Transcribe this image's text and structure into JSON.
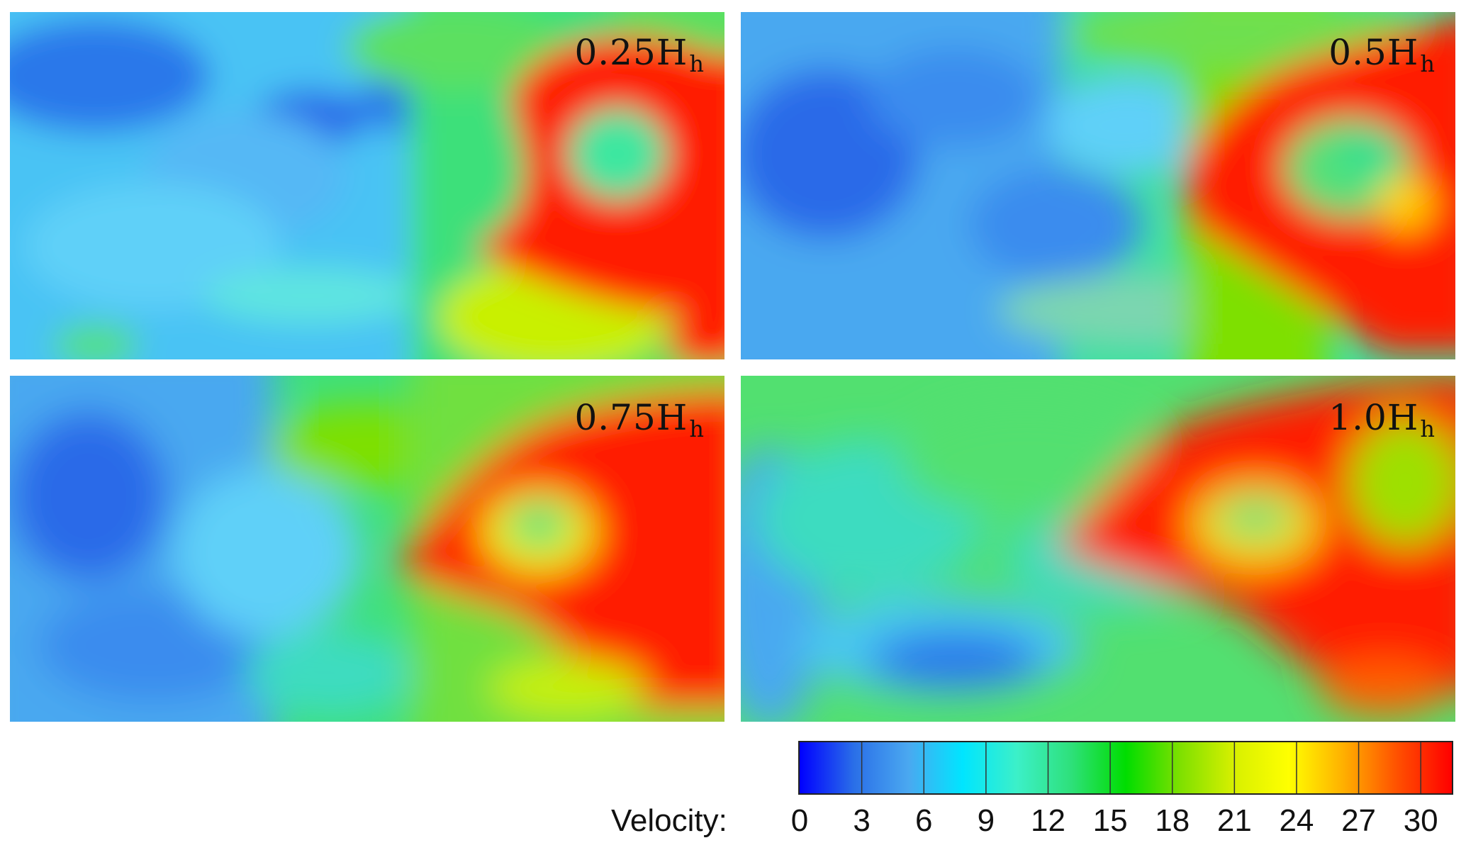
{
  "panels": [
    {
      "label": "0.25H",
      "sub": "h"
    },
    {
      "label": "0.5H",
      "sub": "h"
    },
    {
      "label": "0.75H",
      "sub": "h"
    },
    {
      "label": "1.0H",
      "sub": "h"
    }
  ],
  "chart_data": {
    "type": "heatmap",
    "title": "",
    "colorbar": {
      "title": "Velocity:",
      "ticks": [
        "0",
        "3",
        "6",
        "9",
        "12",
        "15",
        "18",
        "21",
        "24",
        "27",
        "30"
      ],
      "min": 0,
      "max": 31.5,
      "colors": [
        "#0000ff",
        "#2a6fe8",
        "#4aa8f0",
        "#00e5ff",
        "#3cf0c8",
        "#2ee07a",
        "#00dd00",
        "#7ee000",
        "#d8f000",
        "#ffff00",
        "#ffb000",
        "#ff5000",
        "#ff0000"
      ]
    },
    "subplots": [
      "0.25Hh",
      "0.5Hh",
      "0.75Hh",
      "1.0Hh"
    ]
  }
}
